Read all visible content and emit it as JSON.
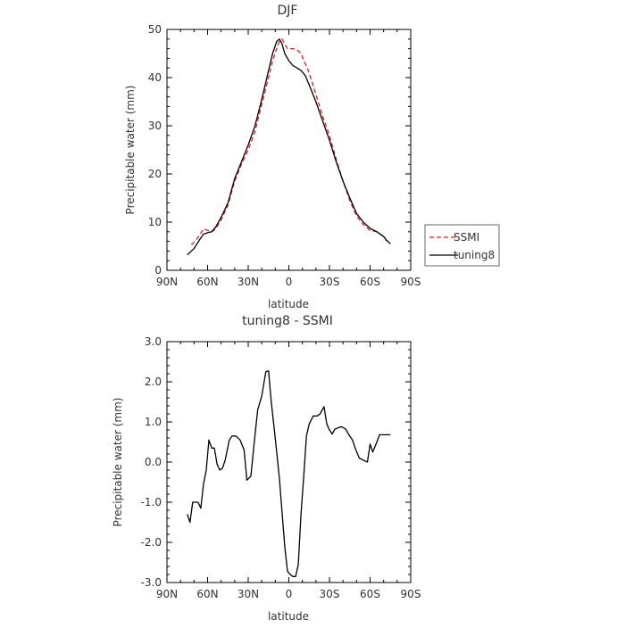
{
  "chart_data": [
    {
      "type": "line",
      "title": "DJF",
      "xlabel": "latitude",
      "ylabel": "Precipitable water (mm)",
      "xlim": [
        -90,
        90
      ],
      "ylim": [
        0,
        50
      ],
      "x_tick_values": [
        -90,
        -60,
        -30,
        0,
        30,
        60,
        90
      ],
      "x_tick_labels": [
        "90N",
        "60N",
        "30N",
        "0",
        "30S",
        "60S",
        "90S"
      ],
      "y_tick_values": [
        0,
        10,
        20,
        30,
        40,
        50
      ],
      "y_tick_labels": [
        "0",
        "10",
        "20",
        "30",
        "40",
        "50"
      ],
      "legend_position": "right",
      "series": [
        {
          "name": "SSMI",
          "color": "#e41a1c",
          "dash": true,
          "x": [
            -72,
            -70,
            -66,
            -63,
            -60,
            -57,
            -54,
            -50,
            -45,
            -40,
            -35,
            -30,
            -25,
            -20,
            -15,
            -12,
            -9,
            -7,
            -5,
            -3,
            -1,
            0,
            3,
            6,
            9,
            12,
            15,
            20,
            25,
            30,
            35,
            40,
            45,
            50,
            55,
            60,
            65,
            70,
            72,
            75
          ],
          "y": [
            5.3,
            5.8,
            7.2,
            8.6,
            8.3,
            8.0,
            8.6,
            10.5,
            13.5,
            18.5,
            22.0,
            25.0,
            28.8,
            34.5,
            40.0,
            43.5,
            46.0,
            47.5,
            48.0,
            47.0,
            46.0,
            46.0,
            46.0,
            45.8,
            45.0,
            43.0,
            41.0,
            36.5,
            32.0,
            28.0,
            23.0,
            18.5,
            14.5,
            11.3,
            9.5,
            8.3,
            8.0,
            7.0,
            6.2,
            5.5
          ]
        },
        {
          "name": "tuning8",
          "color": "#000000",
          "dash": false,
          "x": [
            -75,
            -70,
            -66,
            -63,
            -60,
            -57,
            -54,
            -50,
            -45,
            -40,
            -35,
            -30,
            -25,
            -20,
            -15,
            -12,
            -9,
            -7,
            -5,
            -3,
            -1,
            0,
            3,
            6,
            9,
            12,
            15,
            20,
            25,
            30,
            35,
            40,
            45,
            50,
            55,
            60,
            65,
            70,
            72,
            75
          ],
          "y": [
            3.2,
            4.5,
            6.3,
            7.5,
            7.8,
            8.0,
            9.0,
            11.0,
            14.0,
            19.0,
            22.5,
            26.0,
            30.0,
            35.5,
            41.5,
            45.0,
            47.5,
            48.0,
            47.0,
            45.0,
            44.0,
            43.5,
            42.5,
            42.0,
            41.5,
            40.5,
            38.5,
            35.0,
            31.0,
            27.0,
            22.5,
            18.5,
            15.0,
            11.8,
            10.0,
            8.7,
            8.0,
            7.0,
            6.3,
            5.5
          ]
        }
      ]
    },
    {
      "type": "line",
      "title": "tuning8 - SSMI",
      "xlabel": "latitude",
      "ylabel": "Precipitable water (mm)",
      "xlim": [
        -90,
        90
      ],
      "ylim": [
        -3.0,
        3.0
      ],
      "x_tick_values": [
        -90,
        -60,
        -30,
        0,
        30,
        60,
        90
      ],
      "x_tick_labels": [
        "90N",
        "60N",
        "30N",
        "0",
        "30S",
        "60S",
        "90S"
      ],
      "y_tick_values": [
        -3,
        -2,
        -1,
        0,
        1,
        2,
        3
      ],
      "y_tick_labels": [
        "-3.0",
        "-2.0",
        "-1.0",
        "0.0",
        "1.0",
        "2.0",
        "3.0"
      ],
      "series": [
        {
          "color": "#000000",
          "dash": false,
          "x": [
            -75,
            -73,
            -71,
            -69,
            -67,
            -65,
            -63,
            -61,
            -59,
            -57,
            -55,
            -53,
            -51,
            -49,
            -47,
            -44,
            -42,
            -39,
            -36,
            -33,
            -31,
            -28,
            -26,
            -23,
            -20,
            -17,
            -15,
            -13,
            -11,
            -9,
            -7,
            -5,
            -3,
            -1,
            1,
            3,
            5,
            7,
            9,
            11,
            13,
            15,
            18,
            21,
            23,
            26,
            28,
            30,
            32,
            34,
            36,
            39,
            42,
            44,
            47,
            49,
            52,
            55,
            58,
            60,
            62,
            65,
            67,
            69,
            71,
            73,
            75
          ],
          "y": [
            -1.3,
            -1.5,
            -1.0,
            -1.0,
            -1.0,
            -1.15,
            -0.55,
            -0.2,
            0.55,
            0.35,
            0.35,
            -0.05,
            -0.2,
            -0.15,
            0.05,
            0.55,
            0.65,
            0.65,
            0.55,
            0.3,
            -0.45,
            -0.35,
            0.35,
            1.3,
            1.65,
            2.25,
            2.27,
            1.5,
            0.9,
            0.25,
            -0.4,
            -1.25,
            -2.1,
            -2.72,
            -2.8,
            -2.85,
            -2.85,
            -2.55,
            -1.3,
            -0.35,
            0.65,
            0.95,
            1.15,
            1.15,
            1.2,
            1.38,
            0.95,
            0.8,
            0.7,
            0.82,
            0.85,
            0.88,
            0.82,
            0.7,
            0.55,
            0.35,
            0.1,
            0.05,
            0.0,
            0.45,
            0.25,
            0.5,
            0.68,
            0.68,
            0.68,
            0.68,
            0.68
          ]
        }
      ]
    }
  ]
}
